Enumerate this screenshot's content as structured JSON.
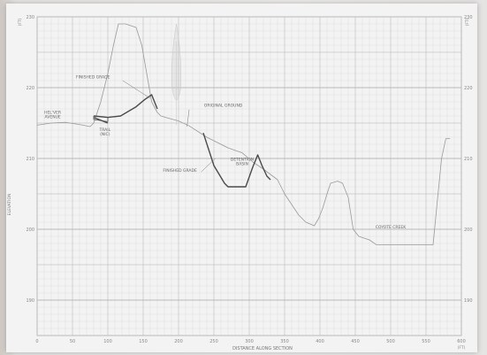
{
  "chart_data": {
    "type": "line",
    "title": "",
    "xlabel": "DISTANCE ALONG SECTION",
    "ylabel": "ELEVATION",
    "x_unit_label": "(FT)",
    "y_unit_label": "(FT)",
    "xlim": [
      0,
      600
    ],
    "ylim": [
      185,
      230
    ],
    "grid": true,
    "x_ticks": [
      "0",
      "50",
      "100",
      "150",
      "200",
      "250",
      "300",
      "350",
      "400",
      "450",
      "500",
      "550",
      "600"
    ],
    "y_ticks": [
      "230",
      "220",
      "210",
      "200",
      "190"
    ],
    "series": [
      {
        "name": "ORIGINAL GROUND",
        "style": "thin",
        "color": "#9a9a9a",
        "points": [
          [
            0,
            214.7
          ],
          [
            20,
            215
          ],
          [
            40,
            215.1
          ],
          [
            60,
            214.8
          ],
          [
            75,
            214.5
          ],
          [
            80,
            215
          ],
          [
            90,
            218
          ],
          [
            100,
            222
          ],
          [
            108,
            226
          ],
          [
            115,
            229
          ],
          [
            125,
            229
          ],
          [
            140,
            228.5
          ],
          [
            148,
            226
          ],
          [
            155,
            222
          ],
          [
            162,
            218
          ],
          [
            170,
            216.5
          ],
          [
            175,
            216
          ],
          [
            185,
            215.7
          ],
          [
            200,
            215.3
          ],
          [
            215,
            214.6
          ],
          [
            240,
            213
          ],
          [
            270,
            211.5
          ],
          [
            290,
            210.8
          ],
          [
            305,
            209.5
          ],
          [
            320,
            208.5
          ],
          [
            340,
            207
          ],
          [
            350,
            205
          ],
          [
            360,
            203.5
          ],
          [
            370,
            202
          ],
          [
            380,
            201
          ],
          [
            392,
            200.5
          ],
          [
            398,
            201.5
          ],
          [
            404,
            203
          ],
          [
            410,
            205
          ],
          [
            415,
            206.5
          ],
          [
            425,
            206.8
          ],
          [
            432,
            206.5
          ],
          [
            440,
            204.5
          ],
          [
            447,
            200
          ],
          [
            455,
            199
          ],
          [
            470,
            198.5
          ],
          [
            480,
            197.8
          ],
          [
            540,
            197.8
          ],
          [
            560,
            197.8
          ],
          [
            566,
            204
          ],
          [
            572,
            210
          ],
          [
            578,
            212.8
          ],
          [
            584,
            212.8
          ]
        ]
      },
      {
        "name": "FINISHED GRADE",
        "style": "thick",
        "color": "#4a4a4a",
        "points": [
          [
            80,
            216
          ],
          [
            100,
            215.8
          ],
          [
            118,
            216
          ],
          [
            140,
            217.3
          ],
          [
            152,
            218.3
          ],
          [
            162,
            219
          ],
          [
            170,
            217
          ]
        ]
      },
      {
        "name": "FINISHED GRADE",
        "style": "thick",
        "color": "#4a4a4a",
        "points": [
          [
            235,
            213.6
          ],
          [
            250,
            209
          ],
          [
            265,
            206.5
          ],
          [
            270,
            206
          ],
          [
            295,
            206
          ],
          [
            305,
            208.8
          ],
          [
            312,
            210.5
          ],
          [
            318,
            209
          ],
          [
            325,
            207.5
          ],
          [
            330,
            207
          ]
        ]
      },
      {
        "name": "TRAIL",
        "style": "thick",
        "color": "#4a4a4a",
        "points": [
          [
            80,
            215.8
          ],
          [
            100,
            215
          ]
        ]
      },
      {
        "name": "TRAIL",
        "style": "thin",
        "color": "#4a4a4a",
        "points": [
          [
            80,
            216
          ],
          [
            80,
            215.5
          ],
          [
            100,
            215.2
          ],
          [
            100,
            215.8
          ]
        ]
      }
    ],
    "annotations": [
      {
        "text": "HEL'VER",
        "line2": "AVENUE",
        "x": 22,
        "y": 216.3,
        "anchor": "middle"
      },
      {
        "text": "FINISHED GRADE",
        "x": 55,
        "y": 221.3,
        "anchor": "start"
      },
      {
        "text": "TRAIL",
        "line2": "(NIC)",
        "x": 96,
        "y": 213.9,
        "anchor": "middle"
      },
      {
        "text": "ORIGINAL GROUND",
        "x": 236,
        "y": 217.3,
        "anchor": "start"
      },
      {
        "text": "DETENTION",
        "line2": "BASIN",
        "x": 290,
        "y": 209.7,
        "anchor": "middle"
      },
      {
        "text": "FINISHED GRADE",
        "x": 178,
        "y": 208.1,
        "anchor": "start"
      },
      {
        "text": "COYOTE CREEK",
        "x": 500,
        "y": 200.1,
        "anchor": "middle"
      }
    ],
    "leaders": [
      {
        "from": [
          121,
          221
        ],
        "to": [
          160,
          218.5
        ]
      },
      {
        "from": [
          215,
          216.9
        ],
        "to": [
          212,
          214.5
        ]
      },
      {
        "from": [
          232,
          208.1
        ],
        "to": [
          252,
          210
        ]
      }
    ]
  }
}
